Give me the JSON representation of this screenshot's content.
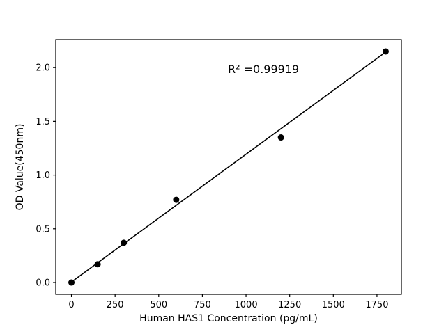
{
  "figure": {
    "background": "#ffffff"
  },
  "chart_data": {
    "type": "scatter",
    "title": "",
    "xlabel": "Human HAS1 Concentration (pg/mL)",
    "ylabel": "OD Value(450nm)",
    "x": [
      0,
      150,
      300,
      600,
      1200,
      1800
    ],
    "y": [
      0.0,
      0.17,
      0.37,
      0.77,
      1.35,
      2.15
    ],
    "fit_line": {
      "x": [
        0,
        1800
      ],
      "y": [
        0.005,
        2.145
      ]
    },
    "annotation": {
      "text": "R² =0.99919",
      "x": 1100,
      "y": 1.95
    },
    "xlim": [
      -90,
      1890
    ],
    "ylim": [
      -0.11,
      2.26
    ],
    "xticks": [
      0,
      250,
      500,
      750,
      1000,
      1250,
      1500,
      1750
    ],
    "xtick_labels": [
      "0",
      "250",
      "500",
      "750",
      "1000",
      "1250",
      "1500",
      "1750"
    ],
    "yticks": [
      0.0,
      0.5,
      1.0,
      1.5,
      2.0
    ],
    "ytick_labels": [
      "0.0",
      "0.5",
      "1.0",
      "1.5",
      "2.0"
    ],
    "grid": false,
    "legend": "none",
    "marker_color": "#000000",
    "line_color": "#000000",
    "marker_radius": 4.5
  }
}
